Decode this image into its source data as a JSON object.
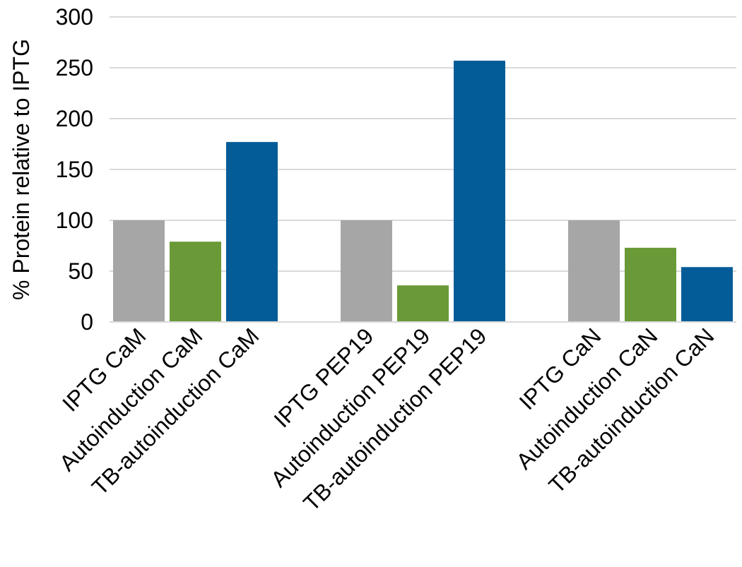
{
  "chart_data": {
    "type": "bar",
    "title": "",
    "xlabel": "",
    "ylabel": "% Protein  relative to IPTG",
    "ylim": [
      0,
      300
    ],
    "yticks": [
      0,
      50,
      100,
      150,
      200,
      250,
      300
    ],
    "grid": true,
    "legend": "none",
    "groups": [
      {
        "bars": [
          {
            "label": "IPTG CaM",
            "value": 100,
            "color": "#a6a6a6"
          },
          {
            "label": "Autoinduction CaM",
            "value": 79,
            "color": "#6a9a37"
          },
          {
            "label": "TB-autoinduction CaM",
            "value": 177,
            "color": "#035c97"
          }
        ]
      },
      {
        "bars": [
          {
            "label": "IPTG PEP19",
            "value": 100,
            "color": "#a6a6a6"
          },
          {
            "label": "Autoinduction PEP19",
            "value": 36,
            "color": "#6a9a37"
          },
          {
            "label": "TB-autoinduction PEP19",
            "value": 257,
            "color": "#035c97"
          }
        ]
      },
      {
        "bars": [
          {
            "label": "IPTG CaN",
            "value": 100,
            "color": "#a6a6a6"
          },
          {
            "label": "Autoinduction CaN",
            "value": 73,
            "color": "#6a9a37"
          },
          {
            "label": "TB-autoinduction CaN",
            "value": 54,
            "color": "#035c97"
          }
        ]
      }
    ]
  }
}
